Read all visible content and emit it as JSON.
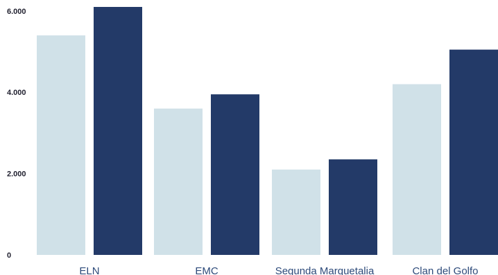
{
  "chart_data": {
    "type": "bar",
    "title": "",
    "xlabel": "",
    "ylabel": "",
    "categories": [
      "ELN",
      "EMC",
      "Segunda Marquetalia",
      "Clan del Golfo"
    ],
    "series": [
      {
        "values": [
          5400,
          3600,
          2100,
          4200
        ]
      },
      {
        "values": [
          6100,
          3950,
          2350,
          5050
        ]
      }
    ],
    "ylim": [
      0,
      6100
    ],
    "yticks": [
      0,
      2000,
      4000,
      6000
    ],
    "ytick_labels": [
      "0",
      "2.000",
      "4.000",
      "6.000"
    ],
    "grid": false,
    "legend": "none",
    "colors": [
      "#d0e1e8",
      "#233a68"
    ]
  }
}
